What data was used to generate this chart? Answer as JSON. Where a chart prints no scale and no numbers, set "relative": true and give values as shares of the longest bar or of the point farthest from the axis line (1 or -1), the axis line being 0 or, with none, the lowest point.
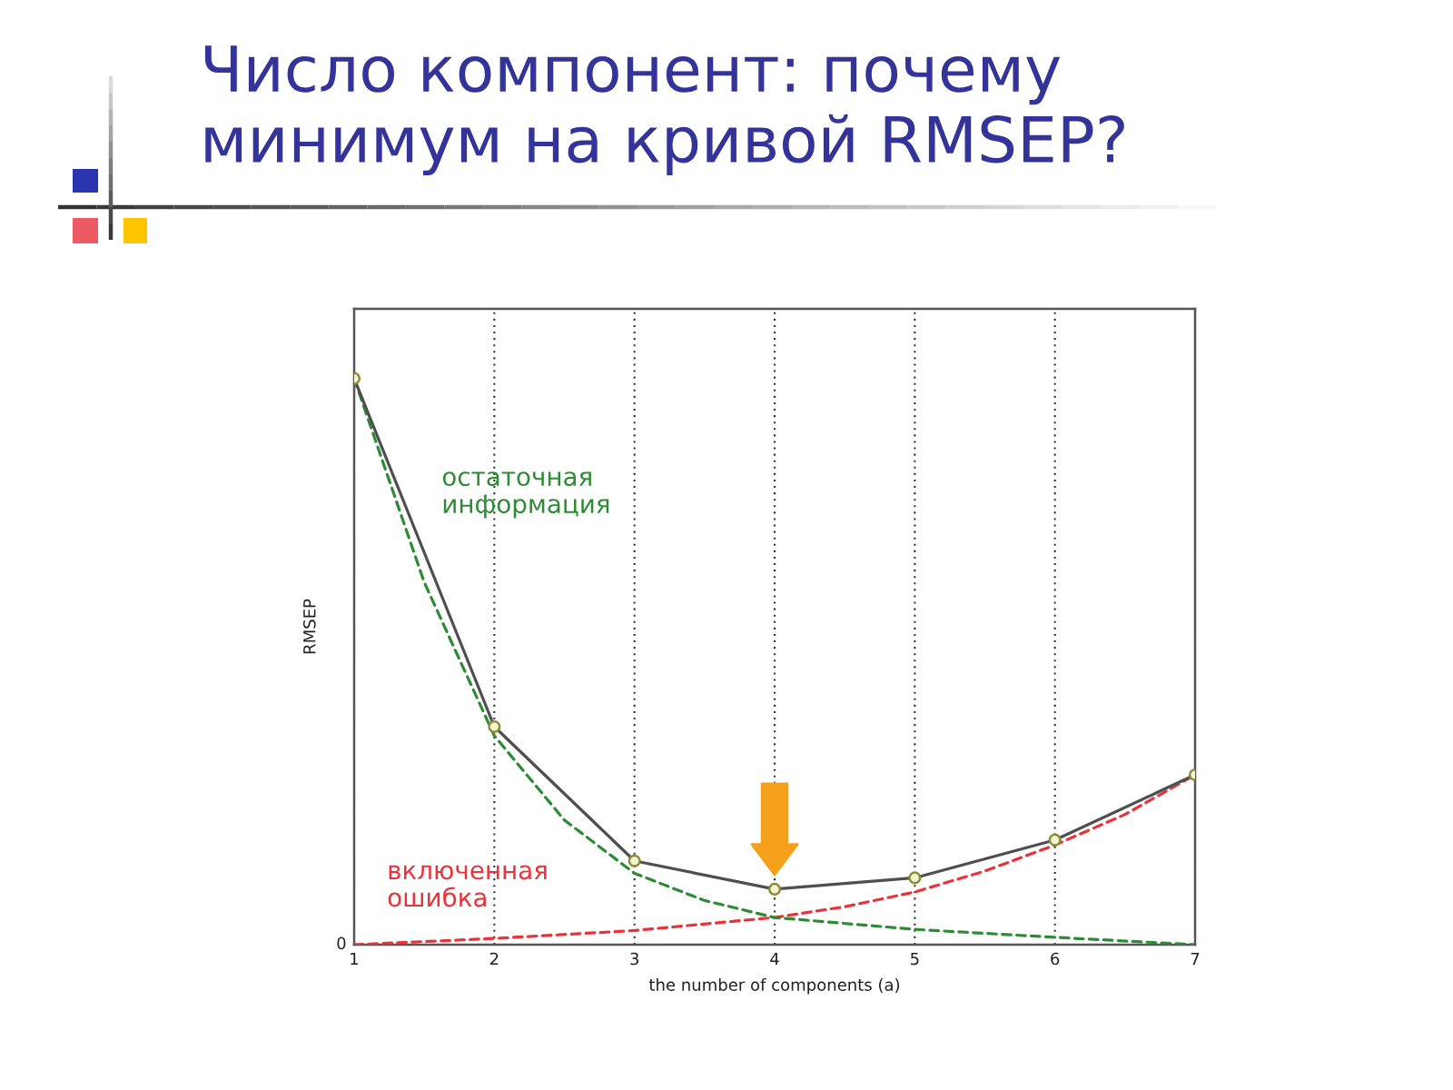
{
  "chart_data": {
    "type": "line",
    "title": "Число компонент: почему\nминимум на кривой RMSEP?",
    "xlabel": "the number of components (a)",
    "ylabel": "RMSEP",
    "relative": true,
    "xlim": [
      1,
      7
    ],
    "xticks": [
      1,
      2,
      3,
      4,
      5,
      6,
      7
    ],
    "grid": "x",
    "annotations": [
      "0"
    ],
    "series": [
      {
        "color": "#4f4f4f",
        "x": [
          1,
          2,
          3,
          4,
          5,
          6,
          7
        ],
        "values": [
          1.0,
          0.385,
          0.148,
          0.098,
          0.118,
          0.185,
          0.3
        ],
        "marker": "circle",
        "line_style": "solid"
      },
      {
        "name": "остаточная\nинформация",
        "color": "#2e8b35",
        "x": [
          1,
          1.5,
          2,
          2.5,
          3,
          3.5,
          4,
          5,
          6,
          7
        ],
        "values": [
          1.0,
          0.64,
          0.369,
          0.22,
          0.126,
          0.078,
          0.048,
          0.027,
          0.013,
          0.0
        ],
        "line_style": "dashed"
      },
      {
        "name": "включенная\nошибка",
        "color": "#e8333a",
        "x": [
          1,
          2,
          3,
          4,
          4.5,
          5,
          5.5,
          6,
          6.5,
          7
        ],
        "values": [
          0.0,
          0.011,
          0.025,
          0.048,
          0.067,
          0.093,
          0.13,
          0.176,
          0.23,
          0.3
        ],
        "line_style": "dashed"
      }
    ]
  }
}
